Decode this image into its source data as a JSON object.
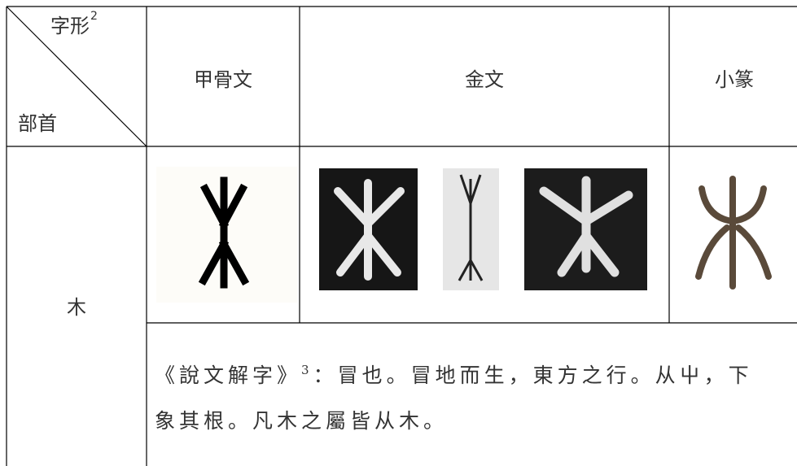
{
  "header": {
    "corner_top": "字形",
    "corner_top_note": "2",
    "corner_bottom": "部首",
    "columns": [
      "甲骨文",
      "金文",
      "小篆"
    ]
  },
  "row": {
    "radical": "木",
    "description": {
      "line1_source": "《說文解字》",
      "line1_note": "3",
      "line1_rest": "：冒也。冒地而生，東方之行。从屮，下",
      "line2": "象其根。凡木之屬皆从木。"
    }
  }
}
